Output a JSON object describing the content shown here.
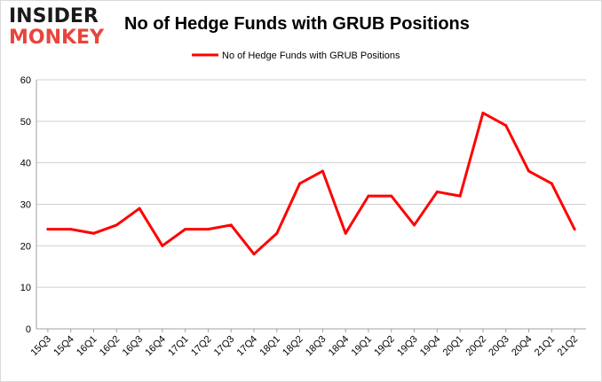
{
  "logo": {
    "line1": "INSIDER",
    "line2": "MONKEY"
  },
  "chart_data": {
    "type": "line",
    "title": "No of Hedge Funds with GRUB Positions",
    "xlabel": "",
    "ylabel": "",
    "categories": [
      "15Q3",
      "15Q4",
      "16Q1",
      "16Q2",
      "16Q3",
      "16Q4",
      "17Q1",
      "17Q2",
      "17Q3",
      "17Q4",
      "18Q1",
      "18Q2",
      "18Q3",
      "18Q4",
      "19Q1",
      "19Q2",
      "19Q3",
      "19Q4",
      "20Q1",
      "20Q2",
      "20Q3",
      "20Q4",
      "21Q1",
      "21Q2"
    ],
    "series": [
      {
        "name": "No of Hedge Funds with GRUB Positions",
        "color": "#ff0000",
        "values": [
          24,
          24,
          23,
          25,
          29,
          20,
          24,
          24,
          25,
          18,
          23,
          35,
          38,
          23,
          32,
          32,
          25,
          33,
          32,
          52,
          49,
          38,
          35,
          24
        ]
      }
    ],
    "ylim": [
      0,
      60
    ],
    "yticks": [
      0,
      10,
      20,
      30,
      40,
      50,
      60
    ],
    "grid": true,
    "legend": "top-center"
  }
}
